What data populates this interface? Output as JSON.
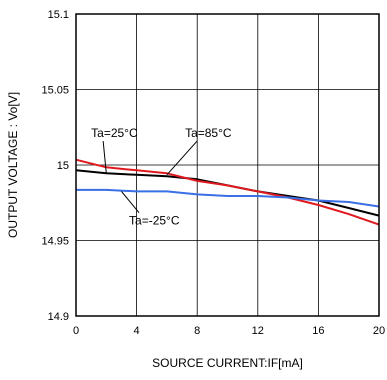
{
  "chart_data": {
    "type": "line",
    "xlabel": "SOURCE CURRENT:IF[mA]",
    "ylabel": "OUTPUT VOLTAGE : Vo[V]",
    "xlim": [
      0,
      20
    ],
    "ylim": [
      14.9,
      15.1
    ],
    "xticks": [
      "0",
      "4",
      "8",
      "12",
      "16",
      "20"
    ],
    "yticks": [
      "14.9",
      "14.95",
      "15",
      "15.05",
      "15.1"
    ],
    "grid": true,
    "colors": {
      "ta_25": "#000000",
      "ta_85": "#e0191e",
      "ta_m25": "#3a6fe6",
      "grid": "#000000"
    },
    "series": [
      {
        "name": "Ta=25°C",
        "color_key": "ta_25",
        "x": [
          0,
          2,
          4,
          6,
          8,
          10,
          12,
          14,
          16,
          18,
          20
        ],
        "y": [
          14.9965,
          14.9945,
          14.9935,
          14.9925,
          14.9905,
          14.9865,
          14.9825,
          14.9795,
          14.9765,
          14.9715,
          14.9665
        ]
      },
      {
        "name": "Ta=85°C",
        "color_key": "ta_85",
        "x": [
          0,
          2,
          4,
          6,
          8,
          10,
          12,
          14,
          16,
          18,
          20
        ],
        "y": [
          15.0035,
          14.9985,
          14.9965,
          14.9945,
          14.9895,
          14.9865,
          14.9825,
          14.9785,
          14.9735,
          14.9675,
          14.9605
        ]
      },
      {
        "name": "Ta=-25°C",
        "color_key": "ta_m25",
        "x": [
          0,
          2,
          4,
          6,
          8,
          10,
          12,
          14,
          16,
          18,
          20
        ],
        "y": [
          14.9835,
          14.9835,
          14.9825,
          14.9825,
          14.9805,
          14.9795,
          14.9795,
          14.9785,
          14.9765,
          14.9755,
          14.9725
        ]
      }
    ],
    "annotations": [
      {
        "text": "Ta=25°C",
        "x": 1.0,
        "y": 15.0185,
        "arrow_to": [
          2.0,
          14.9945
        ]
      },
      {
        "text": "Ta=85°C",
        "x": 7.2,
        "y": 15.0185,
        "arrow_to": [
          6.0,
          14.9935
        ]
      },
      {
        "text": "Ta=-25°C",
        "x": 3.5,
        "y": 14.9605,
        "arrow_to": [
          3.0,
          14.9825
        ]
      }
    ]
  }
}
